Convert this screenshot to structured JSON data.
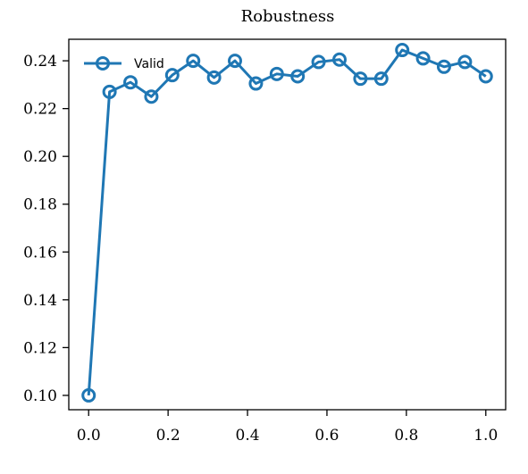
{
  "chart_data": {
    "type": "line",
    "title": "Robustness",
    "xlabel": "",
    "ylabel": "",
    "xlim": [
      -0.05,
      1.05
    ],
    "ylim": [
      0.094,
      0.249
    ],
    "xticks": [
      0.0,
      0.2,
      0.4,
      0.6,
      0.8,
      1.0
    ],
    "xtick_labels": [
      "0.0",
      "0.2",
      "0.4",
      "0.6",
      "0.8",
      "1.0"
    ],
    "yticks": [
      0.1,
      0.12,
      0.14,
      0.16,
      0.18,
      0.2,
      0.22,
      0.24
    ],
    "ytick_labels": [
      "0.10",
      "0.12",
      "0.14",
      "0.16",
      "0.18",
      "0.20",
      "0.22",
      "0.24"
    ],
    "grid": false,
    "legend_position": "top-left",
    "series": [
      {
        "name": "Valid",
        "color": "#1f77b4",
        "marker": "circle-open",
        "x": [
          0.0,
          0.0526,
          0.1053,
          0.1579,
          0.2105,
          0.2632,
          0.3158,
          0.3684,
          0.4211,
          0.4737,
          0.5263,
          0.5789,
          0.6316,
          0.6842,
          0.7368,
          0.7895,
          0.8421,
          0.8947,
          0.9474,
          1.0
        ],
        "y": [
          0.1,
          0.227,
          0.231,
          0.225,
          0.234,
          0.24,
          0.233,
          0.24,
          0.2305,
          0.2345,
          0.2335,
          0.2395,
          0.2405,
          0.2325,
          0.2325,
          0.2445,
          0.241,
          0.2375,
          0.2395,
          0.2335
        ]
      }
    ]
  }
}
